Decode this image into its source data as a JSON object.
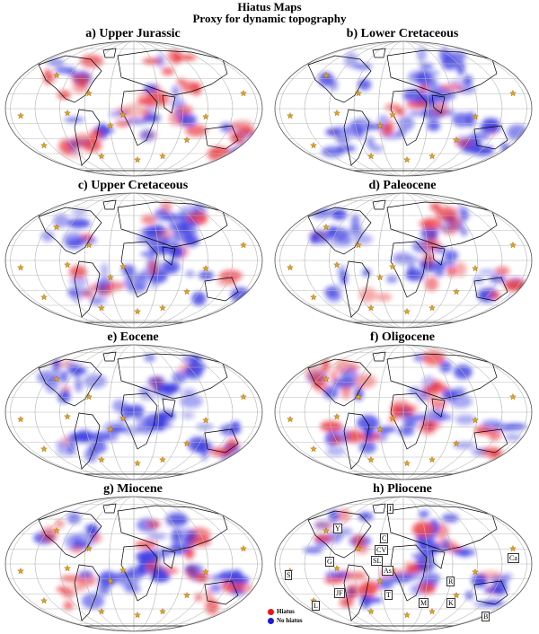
{
  "figure": {
    "title": "Hiatus Maps",
    "subtitle": "Proxy for dynamic topography"
  },
  "panels": [
    {
      "label": "a) Upper Jurassic"
    },
    {
      "label": "b) Lower Cretaceous"
    },
    {
      "label": "c) Upper Cretaceous"
    },
    {
      "label": "d) Paleocene"
    },
    {
      "label": "e) Eocene"
    },
    {
      "label": "f) Oligocene"
    },
    {
      "label": "g) Miocene"
    },
    {
      "label": "h) Pliocene"
    }
  ],
  "legend": {
    "hiatus_label": "Hiatus",
    "no_hiatus_label": "No hiatus",
    "hiatus_color": "#e8141c",
    "no_hiatus_color": "#1a1adf"
  },
  "hotspot_labels": [
    "I",
    "Y",
    "C",
    "G",
    "CV",
    "SL",
    "As",
    "S",
    "Ca",
    "R",
    "JF",
    "T",
    "M",
    "K",
    "L",
    "B"
  ],
  "colors": {
    "hiatus": "#e8141c",
    "no_hiatus": "#1a1adf",
    "hotspot_star": "#e8a317",
    "graticule": "#b8b8b8",
    "coastline": "#000000"
  }
}
